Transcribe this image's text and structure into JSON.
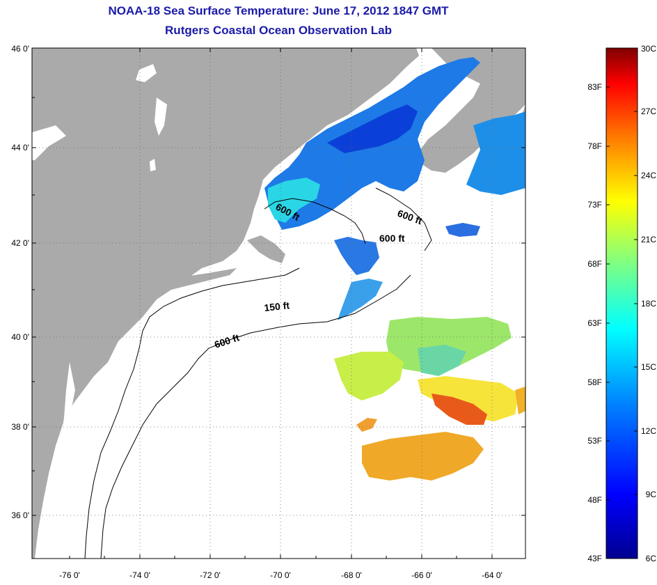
{
  "title": "NOAA-18 Sea Surface Temperature:  June 17, 2012 1847 GMT",
  "subtitle": "Rutgers Coastal Ocean Observation Lab",
  "axes": {
    "lat_ticks": [
      "46 0'",
      "44 0'",
      "42 0'",
      "40 0'",
      "38 0'",
      "36 0'"
    ],
    "lon_ticks": [
      "-76 0'",
      "-74 0'",
      "-72 0'",
      "-70 0'",
      "-68 0'",
      "-66 0'",
      "-64 0'"
    ]
  },
  "contour_labels": [
    "600 ft",
    "600 ft",
    "600 ft",
    "150 ft",
    "600 ft"
  ],
  "colorbar": {
    "fahrenheit_labels": [
      "83F",
      "78F",
      "73F",
      "68F",
      "63F",
      "58F",
      "53F",
      "48F",
      "43F"
    ],
    "celsius_labels": [
      "30C",
      "27C",
      "24C",
      "21C",
      "18C",
      "15C",
      "12C",
      "9C",
      "6C"
    ],
    "range_c": [
      6,
      30
    ],
    "colors": [
      "#00008f",
      "#0000ff",
      "#0080ff",
      "#00ffff",
      "#80ff80",
      "#ffff00",
      "#ff8000",
      "#ff0000",
      "#800000"
    ]
  },
  "colors": {
    "land": "#aaaaaa",
    "ocean": "#ffffff",
    "title": "#1a1aa8"
  }
}
